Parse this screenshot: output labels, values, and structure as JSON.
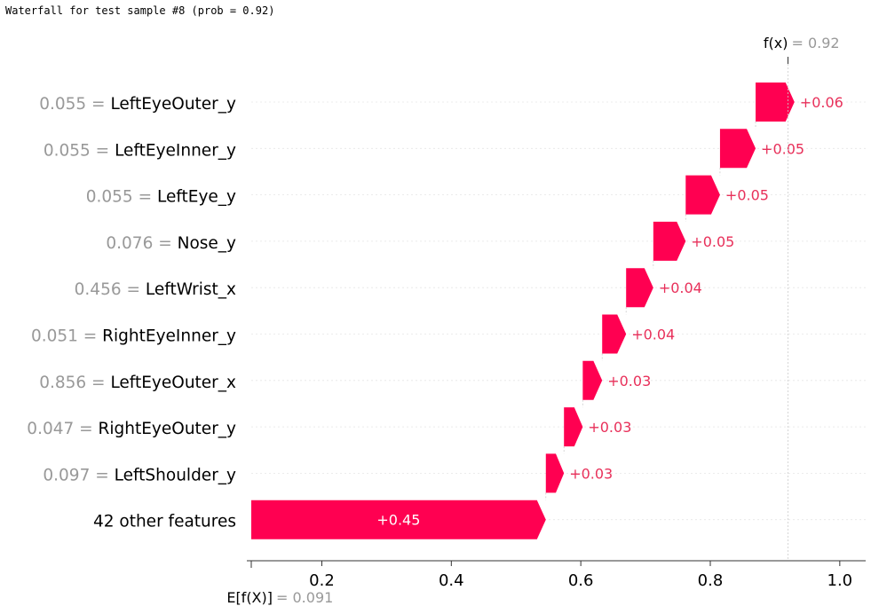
{
  "caption": "Waterfall for test sample #8 (prob = 0.92)",
  "chart_data": {
    "type": "waterfall",
    "base_value": 0.091,
    "output_value": 0.92,
    "base_label": "E[f(X)]",
    "base_value_text": "= 0.091",
    "output_label": "f(x)",
    "output_value_text": "= 0.92",
    "xlim": [
      0.09,
      1.06
    ],
    "xticks": [
      0.2,
      0.4,
      0.6,
      0.8,
      1.0
    ],
    "xtick_labels": [
      "0.2",
      "0.4",
      "0.6",
      "0.8",
      "1.0"
    ],
    "features": [
      {
        "value": "0.055",
        "name": "LeftEyeOuter_y",
        "shap": 0.06,
        "label": "+0.06"
      },
      {
        "value": "0.055",
        "name": "LeftEyeInner_y",
        "shap": 0.055,
        "label": "+0.05"
      },
      {
        "value": "0.055",
        "name": "LeftEye_y",
        "shap": 0.053,
        "label": "+0.05"
      },
      {
        "value": "0.076",
        "name": "Nose_y",
        "shap": 0.05,
        "label": "+0.05"
      },
      {
        "value": "0.456",
        "name": "LeftWrist_x",
        "shap": 0.042,
        "label": "+0.04"
      },
      {
        "value": "0.051",
        "name": "RightEyeInner_y",
        "shap": 0.037,
        "label": "+0.04"
      },
      {
        "value": "0.856",
        "name": "LeftEyeOuter_x",
        "shap": 0.03,
        "label": "+0.03"
      },
      {
        "value": "0.047",
        "name": "RightEyeOuter_y",
        "shap": 0.029,
        "label": "+0.03"
      },
      {
        "value": "0.097",
        "name": "LeftShoulder_y",
        "shap": 0.028,
        "label": "+0.03"
      },
      {
        "value": "",
        "name": "42 other features",
        "shap": 0.455,
        "label": "+0.45"
      }
    ],
    "colors": {
      "positive": "#ff0051",
      "positive_label": "#e8305a",
      "muted": "#999999",
      "axis": "#333333",
      "gridline": "#cccccc"
    }
  }
}
